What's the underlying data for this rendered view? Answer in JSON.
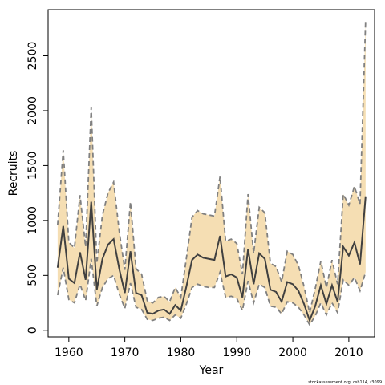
{
  "chart_data": {
    "type": "line",
    "title": "",
    "xlabel": "Year",
    "ylabel": "Recruits",
    "xlim": [
      1956.3,
      2014.6
    ],
    "ylim": [
      -60,
      2920
    ],
    "x_ticks": [
      1960,
      1970,
      1980,
      1990,
      2000,
      2010
    ],
    "x_tick_labels": [
      "1960",
      "1970",
      "1980",
      "1990",
      "2000",
      "2010"
    ],
    "y_ticks": [
      0,
      500,
      1000,
      1500,
      2000,
      2500
    ],
    "y_tick_labels": [
      "0",
      "500",
      "1000",
      "1500",
      "2000",
      "2500"
    ],
    "grid": false,
    "legend": "none",
    "colors": {
      "band": "#F5DEB3",
      "bounds": "#808080",
      "estimate": "#404040"
    },
    "x": [
      1958,
      1959,
      1960,
      1961,
      1962,
      1963,
      1964,
      1965,
      1966,
      1967,
      1968,
      1969,
      1970,
      1971,
      1972,
      1973,
      1974,
      1975,
      1976,
      1977,
      1978,
      1979,
      1980,
      1981,
      1982,
      1983,
      1984,
      1985,
      1986,
      1987,
      1988,
      1989,
      1990,
      1991,
      1992,
      1993,
      1994,
      1995,
      1996,
      1997,
      1998,
      1999,
      2000,
      2001,
      2002,
      2003,
      2004,
      2005,
      2006,
      2007,
      2008,
      2009,
      2010,
      2011,
      2012,
      2013
    ],
    "series": [
      {
        "role": "estimate",
        "values": [
          570,
          950,
          470,
          430,
          710,
          460,
          1170,
          370,
          650,
          780,
          830,
          560,
          340,
          720,
          340,
          320,
          160,
          150,
          180,
          190,
          150,
          230,
          180,
          400,
          640,
          690,
          660,
          650,
          640,
          860,
          490,
          510,
          480,
          300,
          740,
          420,
          700,
          650,
          370,
          350,
          260,
          440,
          420,
          360,
          240,
          90,
          220,
          410,
          240,
          410,
          260,
          760,
          680,
          800,
          600,
          1220
        ]
      },
      {
        "role": "upper-bound",
        "values": [
          960,
          1640,
          800,
          750,
          1230,
          760,
          2030,
          610,
          1050,
          1250,
          1350,
          900,
          550,
          1170,
          560,
          510,
          270,
          250,
          300,
          310,
          260,
          390,
          300,
          660,
          1030,
          1090,
          1060,
          1050,
          1040,
          1400,
          810,
          830,
          790,
          510,
          1240,
          700,
          1120,
          1070,
          610,
          580,
          440,
          720,
          690,
          590,
          400,
          160,
          380,
          630,
          390,
          640,
          420,
          1240,
          1140,
          1310,
          1150,
          2820
        ]
      },
      {
        "role": "lower-bound",
        "values": [
          320,
          570,
          280,
          250,
          420,
          270,
          650,
          220,
          390,
          470,
          500,
          330,
          200,
          430,
          210,
          190,
          100,
          90,
          110,
          120,
          90,
          140,
          110,
          240,
          390,
          420,
          400,
          390,
          390,
          530,
          300,
          310,
          290,
          180,
          450,
          250,
          420,
          390,
          220,
          210,
          150,
          260,
          250,
          210,
          140,
          50,
          130,
          250,
          140,
          250,
          160,
          460,
          410,
          480,
          360,
          530
        ]
      }
    ]
  },
  "footnote": "stockassessment.org, csh114, r3099"
}
